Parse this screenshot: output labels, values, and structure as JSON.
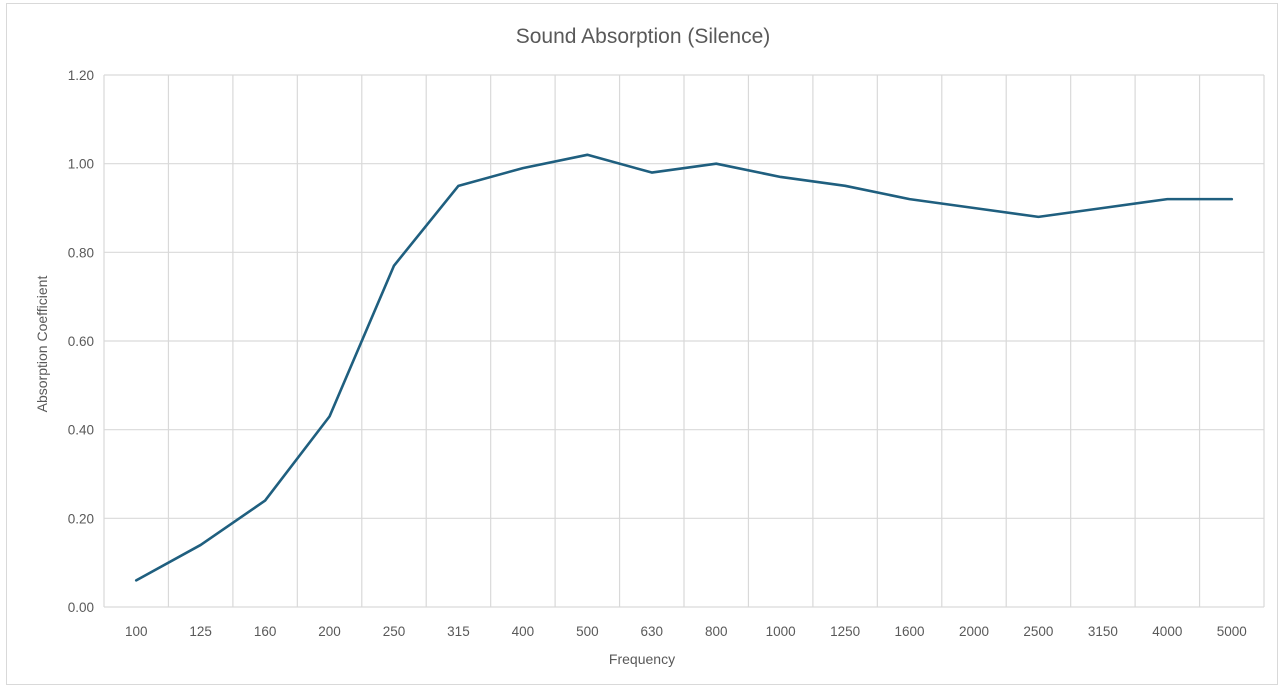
{
  "chart_data": {
    "type": "line",
    "title": "Sound Absorption (Silence)",
    "xlabel": "Frequency",
    "ylabel": "Absorption Coefficient",
    "categories": [
      "100",
      "125",
      "160",
      "200",
      "250",
      "315",
      "400",
      "500",
      "630",
      "800",
      "1000",
      "1250",
      "1600",
      "2000",
      "2500",
      "3150",
      "4000",
      "5000"
    ],
    "series": [
      {
        "values": [
          0.06,
          0.14,
          0.24,
          0.43,
          0.77,
          0.95,
          0.99,
          1.02,
          0.98,
          1.0,
          0.97,
          0.95,
          0.92,
          0.9,
          0.88,
          0.9,
          0.92,
          0.92
        ]
      }
    ],
    "ylim": [
      0,
      1.2
    ],
    "yticks": [
      "0.00",
      "0.20",
      "0.40",
      "0.60",
      "0.80",
      "1.00",
      "1.20"
    ],
    "grid": true,
    "legend": "none",
    "colors": {
      "series": "#1f5f7f",
      "grid": "#d9d9d9",
      "text": "#595959"
    }
  }
}
